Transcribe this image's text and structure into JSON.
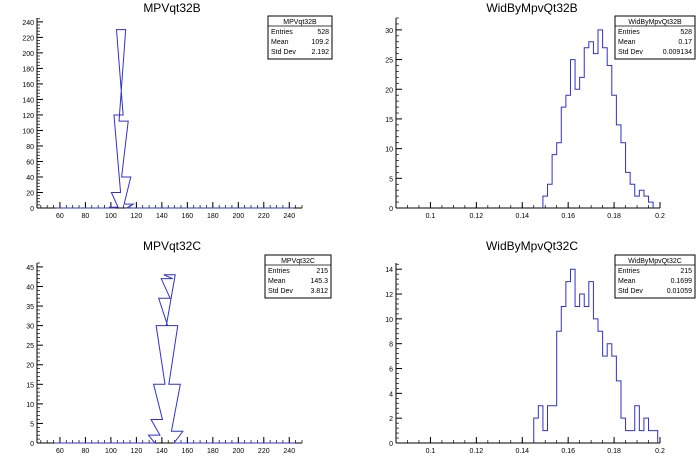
{
  "chart_data": [
    {
      "type": "histogram",
      "title": "MPVqt32B",
      "x": [
        60,
        70,
        80,
        90,
        100,
        102,
        104,
        106,
        108,
        110,
        112,
        114,
        116,
        120,
        130,
        140,
        150,
        160,
        170,
        180,
        190,
        200,
        210,
        220,
        230,
        240
      ],
      "values": [
        0,
        0,
        0,
        0,
        0,
        1,
        20,
        120,
        230,
        112,
        40,
        5,
        0,
        0,
        0,
        0,
        0,
        0,
        0,
        0,
        0,
        0,
        0,
        0,
        0,
        0
      ],
      "xlim": [
        42,
        250
      ],
      "ylim": [
        0,
        245
      ],
      "xticks": [
        60,
        80,
        100,
        120,
        140,
        160,
        180,
        200,
        220,
        240
      ],
      "yticks": [
        0,
        20,
        40,
        60,
        80,
        100,
        120,
        140,
        160,
        180,
        200,
        220,
        240
      ],
      "color": "#3030cc",
      "stats": {
        "name": "MPVqt32B",
        "rows": [
          {
            "label": "Entries",
            "value": "528"
          },
          {
            "label": "Mean",
            "value": "109.2"
          },
          {
            "label": "Std Dev",
            "value": "2.192"
          }
        ]
      }
    },
    {
      "type": "histogram",
      "title": "WidByMpvQt32B",
      "x": [
        0.15,
        0.152,
        0.154,
        0.156,
        0.158,
        0.16,
        0.162,
        0.164,
        0.166,
        0.168,
        0.17,
        0.172,
        0.174,
        0.176,
        0.178,
        0.18,
        0.182,
        0.184,
        0.186,
        0.188,
        0.19,
        0.192,
        0.194,
        0.196
      ],
      "values": [
        2,
        4,
        9,
        11,
        17,
        19,
        25,
        20,
        22,
        27,
        28,
        26,
        30,
        27,
        24,
        19,
        14,
        11,
        6,
        4,
        2,
        3,
        2,
        1
      ],
      "xlim": [
        0.085,
        0.2
      ],
      "ylim": [
        0,
        32
      ],
      "xticks": [
        0.1,
        0.12,
        0.14,
        0.16,
        0.18,
        0.2
      ],
      "yticks": [
        0,
        5,
        10,
        15,
        20,
        25,
        30
      ],
      "color": "#3030cc",
      "stats": {
        "name": "WidByMpvQt32B",
        "rows": [
          {
            "label": "Entries",
            "value": "528"
          },
          {
            "label": "Mean",
            "value": "0.17"
          },
          {
            "label": "Std Dev",
            "value": "0.009134"
          }
        ]
      }
    },
    {
      "type": "histogram",
      "title": "MPVqt32C",
      "x": [
        60,
        80,
        100,
        120,
        130,
        134,
        136,
        138,
        140,
        142,
        144,
        146,
        148,
        150,
        152,
        154,
        160,
        180,
        200,
        220,
        240
      ],
      "values": [
        0,
        0,
        0,
        0,
        0,
        2,
        6,
        15,
        30,
        37,
        42,
        43,
        30,
        15,
        3,
        0,
        0,
        0,
        0,
        0,
        0
      ],
      "xlim": [
        42,
        250
      ],
      "ylim": [
        0,
        46
      ],
      "xticks": [
        60,
        80,
        100,
        120,
        140,
        160,
        180,
        200,
        220,
        240
      ],
      "yticks": [
        0,
        5,
        10,
        15,
        20,
        25,
        30,
        35,
        40,
        45
      ],
      "color": "#3030cc",
      "stats": {
        "name": "MPVqt32C",
        "rows": [
          {
            "label": "Entries",
            "value": "215"
          },
          {
            "label": "Mean",
            "value": "145.3"
          },
          {
            "label": "Std Dev",
            "value": "3.812"
          }
        ]
      }
    },
    {
      "type": "histogram",
      "title": "WidByMpvQt32C",
      "x": [
        0.146,
        0.148,
        0.15,
        0.152,
        0.154,
        0.156,
        0.158,
        0.16,
        0.162,
        0.164,
        0.166,
        0.168,
        0.17,
        0.172,
        0.174,
        0.176,
        0.178,
        0.18,
        0.182,
        0.184,
        0.186,
        0.188,
        0.19,
        0.192,
        0.194,
        0.196,
        0.198
      ],
      "values": [
        2,
        3,
        1,
        3,
        3,
        9,
        11,
        13,
        14,
        11,
        12,
        11,
        13,
        10,
        9,
        7,
        8,
        7,
        5,
        2,
        1,
        1,
        3,
        1,
        2,
        1,
        1
      ],
      "xlim": [
        0.085,
        0.2
      ],
      "ylim": [
        0,
        14.5
      ],
      "xticks": [
        0.1,
        0.12,
        0.14,
        0.16,
        0.18,
        0.2
      ],
      "yticks": [
        0,
        2,
        4,
        6,
        8,
        10,
        12,
        14
      ],
      "color": "#3030cc",
      "stats": {
        "name": "WidByMpvQt32C",
        "rows": [
          {
            "label": "Entries",
            "value": "215"
          },
          {
            "label": "Mean",
            "value": "0.1699"
          },
          {
            "label": "Std Dev",
            "value": "0.01059"
          }
        ]
      }
    }
  ]
}
